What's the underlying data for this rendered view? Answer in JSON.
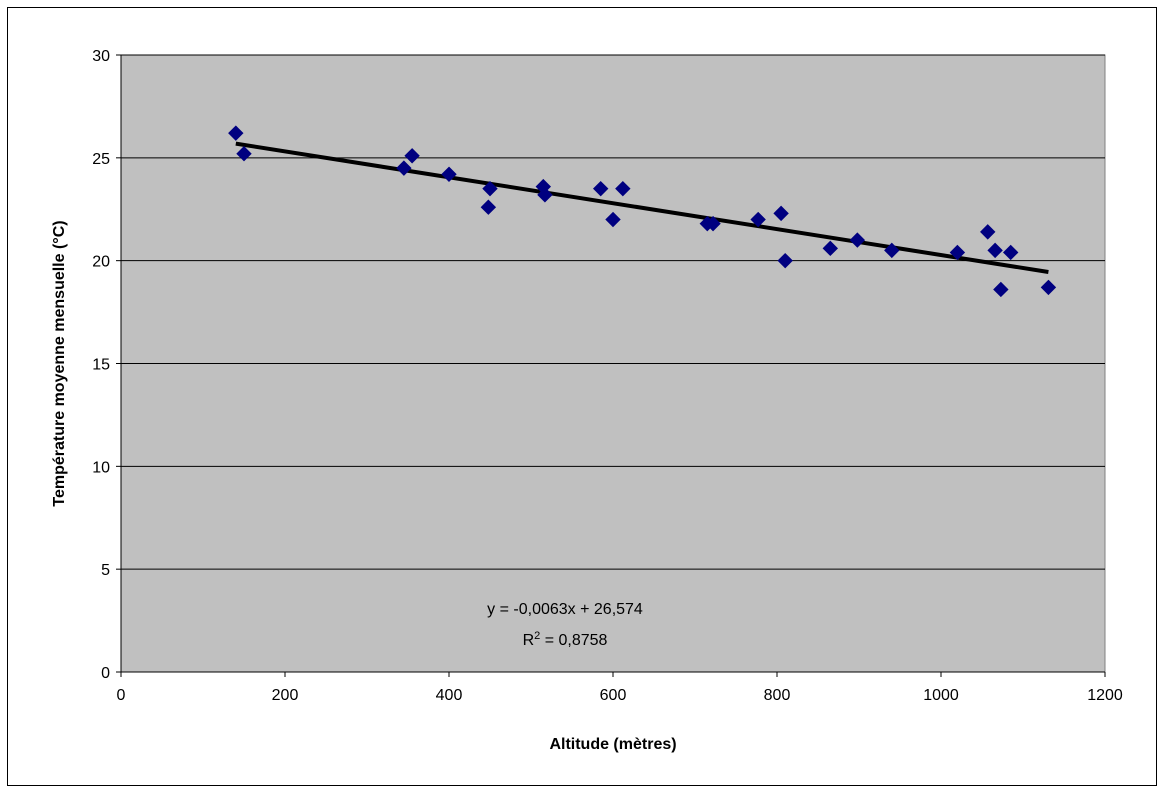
{
  "chart_data": {
    "type": "scatter",
    "title": "",
    "xlabel": "Altitude (mètres)",
    "ylabel": "Température moyenne mensuelle (°C)",
    "xlim": [
      0,
      1200
    ],
    "ylim": [
      0,
      30
    ],
    "x_ticks": [
      0,
      200,
      400,
      600,
      800,
      1000,
      1200
    ],
    "y_ticks": [
      0,
      5,
      10,
      15,
      20,
      25,
      30
    ],
    "grid": "horizontal",
    "plot_background": "#c0c0c0",
    "marker_color": "#000080",
    "marker_shape": "diamond",
    "trendline_color": "#000000",
    "series": [
      {
        "x": [
          140,
          150,
          345,
          355,
          400,
          448,
          450,
          515,
          517,
          585,
          600,
          612,
          715,
          722,
          777,
          805,
          810,
          865,
          898,
          940,
          1020,
          1057,
          1066,
          1073,
          1085,
          1131
        ],
        "y": [
          26.2,
          25.2,
          24.5,
          25.1,
          24.2,
          22.6,
          23.5,
          23.6,
          23.2,
          23.5,
          22.0,
          23.5,
          21.8,
          21.8,
          22.0,
          22.3,
          20.0,
          20.6,
          21.0,
          20.5,
          20.4,
          21.4,
          20.5,
          18.6,
          20.4,
          18.7
        ]
      }
    ],
    "trendline": {
      "type": "linear",
      "slope": -0.0063,
      "intercept": 26.574,
      "x_range": [
        140,
        1131
      ]
    },
    "annotations": {
      "equation": "y = -0,0063x + 26,574",
      "r2_prefix": "R",
      "r2_sup": "2",
      "r2_suffix": " = 0,8758"
    }
  }
}
